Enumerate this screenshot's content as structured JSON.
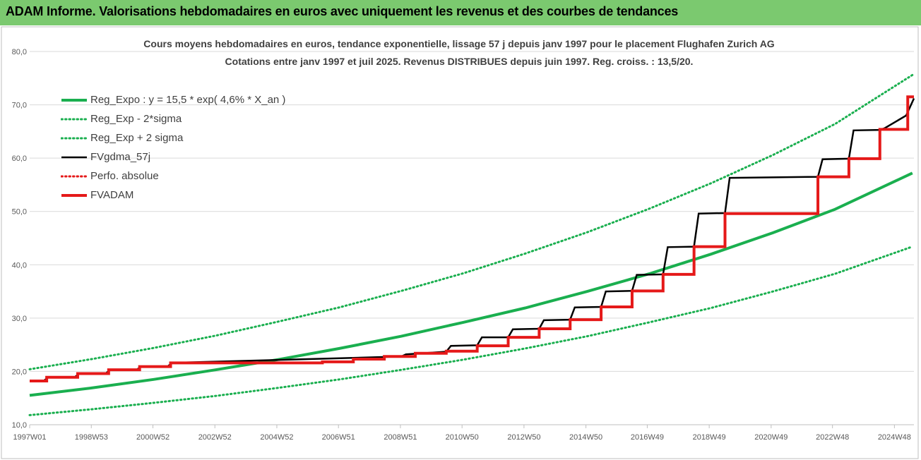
{
  "header": {
    "title": "ADAM Informe. Valorisations hebdomadaires en euros avec uniquement les revenus et des courbes de tendances"
  },
  "colors": {
    "header_bg": "#7bc96f",
    "trend_green": "#1aaf4f",
    "fv_black": "#000000",
    "adam_red": "#e51919",
    "grid": "#d9d9d9",
    "axis_text": "#595959"
  },
  "chart_data": {
    "type": "line",
    "title": "Cours moyens hebdomadaires en euros, tendance exponentielle, lissage 57 j depuis janv 1997  pour le placement Flughafen Zurich AG",
    "subtitle": "Cotations entre janv 1997 et juil 2025. Revenus DISTRIBUES depuis juin 1997. Reg. croiss. : 13,5/20.",
    "xlabel": "",
    "ylabel": "",
    "ylim": [
      10,
      80
    ],
    "yticks": [
      "10,0",
      "20,0",
      "30,0",
      "40,0",
      "50,0",
      "60,0",
      "70,0",
      "80,0"
    ],
    "xlim": [
      1997.0,
      2025.55
    ],
    "xticks": [
      {
        "x": 1997.0,
        "label": "1997W01"
      },
      {
        "x": 1998.99,
        "label": "1998W53"
      },
      {
        "x": 2000.98,
        "label": "2000W52"
      },
      {
        "x": 2002.98,
        "label": "2002W52"
      },
      {
        "x": 2004.98,
        "label": "2004W52"
      },
      {
        "x": 2006.97,
        "label": "2006W51"
      },
      {
        "x": 2008.97,
        "label": "2008W51"
      },
      {
        "x": 2010.96,
        "label": "2010W50"
      },
      {
        "x": 2012.96,
        "label": "2012W50"
      },
      {
        "x": 2014.96,
        "label": "2014W50"
      },
      {
        "x": 2016.94,
        "label": "2016W49"
      },
      {
        "x": 2018.94,
        "label": "2018W49"
      },
      {
        "x": 2020.94,
        "label": "2020W49"
      },
      {
        "x": 2022.92,
        "label": "2022W48"
      },
      {
        "x": 2024.92,
        "label": "2024W48"
      }
    ],
    "grid": "horizontal",
    "legend_position": "top-left",
    "series": [
      {
        "name": "Reg_Expo : y = 15,5 * exp( 4,6% *  X_an )",
        "style": "solid-thick",
        "color": "#1aaf4f",
        "x": [
          1997.0,
          1999.0,
          2001.0,
          2003.0,
          2005.0,
          2007.0,
          2009.0,
          2011.0,
          2013.0,
          2015.0,
          2017.0,
          2019.0,
          2021.0,
          2023.0,
          2025.5
        ],
        "y": [
          15.5,
          16.9,
          18.5,
          20.3,
          22.2,
          24.3,
          26.6,
          29.2,
          31.9,
          35.0,
          38.3,
          42.0,
          46.0,
          50.4,
          57.2
        ]
      },
      {
        "name": "Reg_Exp - 2*sigma",
        "style": "dotted",
        "color": "#1aaf4f",
        "x": [
          1997.0,
          1999.0,
          2001.0,
          2003.0,
          2005.0,
          2007.0,
          2009.0,
          2011.0,
          2013.0,
          2015.0,
          2017.0,
          2019.0,
          2021.0,
          2023.0,
          2025.5
        ],
        "y": [
          11.8,
          12.9,
          14.1,
          15.4,
          16.9,
          18.5,
          20.3,
          22.2,
          24.3,
          26.6,
          29.2,
          31.9,
          35.0,
          38.3,
          43.4
        ]
      },
      {
        "name": "Reg_Exp + 2 sigma",
        "style": "dotted",
        "color": "#1aaf4f",
        "x": [
          1997.0,
          1999.0,
          2001.0,
          2003.0,
          2005.0,
          2007.0,
          2009.0,
          2011.0,
          2013.0,
          2015.0,
          2017.0,
          2019.0,
          2021.0,
          2023.0,
          2025.5
        ],
        "y": [
          20.4,
          22.3,
          24.4,
          26.7,
          29.3,
          32.0,
          35.1,
          38.4,
          42.1,
          46.1,
          50.5,
          55.3,
          60.6,
          66.4,
          75.6
        ]
      },
      {
        "name": "FVgdma_57j",
        "style": "solid",
        "color": "#000000",
        "x": [
          1997.0,
          1997.45,
          1997.6,
          1998.45,
          1998.6,
          1999.45,
          1999.6,
          2000.45,
          2000.6,
          2001.45,
          2001.6,
          2009.0,
          2009.15,
          2010.45,
          2010.6,
          2011.45,
          2011.6,
          2012.45,
          2012.6,
          2013.45,
          2013.6,
          2014.45,
          2014.6,
          2015.45,
          2015.6,
          2016.45,
          2016.6,
          2017.45,
          2017.6,
          2018.45,
          2018.6,
          2019.45,
          2019.6,
          2022.45,
          2022.6,
          2023.45,
          2023.6,
          2024.45,
          2024.6,
          2025.3,
          2025.55
        ],
        "y": [
          18.2,
          18.2,
          18.9,
          18.9,
          19.6,
          19.6,
          20.3,
          20.3,
          20.9,
          20.9,
          21.6,
          22.8,
          23.2,
          23.7,
          24.8,
          24.9,
          26.4,
          26.4,
          27.9,
          28.0,
          29.6,
          29.7,
          32.0,
          32.1,
          35.0,
          35.1,
          38.1,
          38.2,
          43.3,
          43.4,
          49.6,
          49.7,
          56.3,
          56.5,
          59.8,
          59.9,
          65.2,
          65.3,
          65.6,
          68.0,
          71.2
        ]
      },
      {
        "name": "Perfo. absolue",
        "style": "dotted",
        "color": "#e51919",
        "x": [],
        "y": []
      },
      {
        "name": "FVADAM",
        "style": "step-thick",
        "color": "#e51919",
        "x": [
          1997.0,
          1997.55,
          1998.55,
          1999.55,
          2000.55,
          2001.55,
          2005.45,
          2006.45,
          2007.45,
          2008.45,
          2009.45,
          2010.45,
          2011.45,
          2012.45,
          2013.45,
          2014.45,
          2015.45,
          2016.45,
          2017.45,
          2018.45,
          2019.45,
          2022.45,
          2023.45,
          2024.45,
          2025.35,
          2025.55
        ],
        "y": [
          18.2,
          18.9,
          19.6,
          20.3,
          20.9,
          21.6,
          21.6,
          21.8,
          22.3,
          22.8,
          23.4,
          23.8,
          24.8,
          26.4,
          28.0,
          29.7,
          32.1,
          35.1,
          38.2,
          43.4,
          49.6,
          56.5,
          59.9,
          65.4,
          71.5,
          71.5
        ]
      }
    ]
  }
}
